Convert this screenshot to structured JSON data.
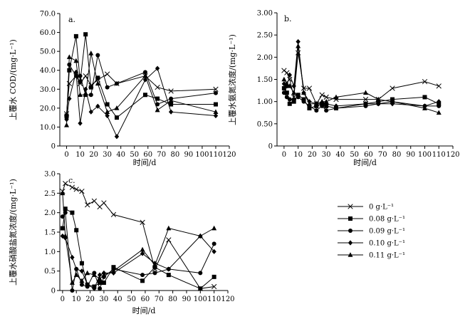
{
  "chart_data": [
    {
      "type": "line",
      "panel_label": "a.",
      "title": "",
      "xlabel": "时间/d",
      "ylabel": "上覆水 COD/(mg·L⁻¹)",
      "xlim": [
        -5,
        120
      ],
      "ylim": [
        0,
        70
      ],
      "xticks": [
        0,
        10,
        20,
        30,
        40,
        50,
        60,
        70,
        80,
        90,
        100,
        110,
        120
      ],
      "xtick_labels": [
        "0",
        "10",
        "20",
        "30",
        "40",
        "50",
        "60",
        "70",
        "80",
        "90",
        "100",
        "110",
        "120"
      ],
      "yticks": [
        0,
        10,
        20,
        30,
        40,
        50,
        60,
        70
      ],
      "ytick_labels": [
        "0",
        "10.0",
        "20.0",
        "30.0",
        "40.0",
        "50.0",
        "60.0",
        "70.0"
      ],
      "series": [
        {
          "name": "0 g·L⁻¹",
          "marker": "x",
          "x": [
            0,
            2,
            7,
            10,
            14,
            18,
            23,
            30,
            37,
            58,
            67,
            77,
            110
          ],
          "y": [
            17,
            33,
            37,
            33,
            37,
            32,
            35,
            38,
            33,
            37,
            31,
            29,
            30
          ]
        },
        {
          "name": "0.08 g·L⁻¹",
          "marker": "square",
          "x": [
            0,
            2,
            7,
            10,
            14,
            18,
            23,
            30,
            37,
            58,
            67,
            77,
            110
          ],
          "y": [
            16,
            40,
            58,
            34,
            59,
            31,
            36,
            22,
            15,
            27,
            25,
            22,
            22
          ]
        },
        {
          "name": "0.09 g·L⁻¹",
          "marker": "circle",
          "x": [
            0,
            2,
            7,
            10,
            14,
            18,
            23,
            30,
            37,
            58,
            67,
            77,
            110
          ],
          "y": [
            15,
            43,
            37,
            37,
            27,
            27,
            48,
            31,
            33,
            39,
            22,
            25,
            28
          ]
        },
        {
          "name": "0.10 g·L⁻¹",
          "marker": "diamond",
          "x": [
            0,
            2,
            7,
            10,
            14,
            18,
            23,
            30,
            37,
            58,
            67,
            77,
            110
          ],
          "y": [
            14,
            25,
            39,
            12,
            30,
            18,
            21,
            16,
            5,
            35,
            41,
            18,
            16
          ]
        },
        {
          "name": "0.11 g·L⁻¹",
          "marker": "triangle",
          "x": [
            0,
            2,
            7,
            10,
            14,
            18,
            23,
            30,
            37,
            58,
            67,
            77,
            110
          ],
          "y": [
            11,
            47,
            45,
            27,
            27,
            49,
            33,
            18,
            20,
            37,
            19,
            24,
            18
          ]
        }
      ]
    },
    {
      "type": "line",
      "panel_label": "b.",
      "title": "",
      "xlabel": "时间/d",
      "ylabel": "上覆水氨氮浓度/(mg·L⁻¹)",
      "xlim": [
        -5,
        120
      ],
      "ylim": [
        0,
        3
      ],
      "xticks": [
        0,
        10,
        20,
        30,
        40,
        50,
        60,
        70,
        80,
        90,
        100,
        110,
        120
      ],
      "xtick_labels": [
        "0",
        "10",
        "20",
        "30",
        "40",
        "50",
        "60",
        "70",
        "80",
        "90",
        "100",
        "110",
        "120"
      ],
      "yticks": [
        0,
        0.5,
        1,
        1.5,
        2,
        2.5,
        3
      ],
      "ytick_labels": [
        "0",
        "0.50",
        "1.00",
        "1.50",
        "2.00",
        "2.50",
        "3.00"
      ],
      "series": [
        {
          "name": "0 g·L⁻¹",
          "marker": "x",
          "x": [
            0,
            2,
            4,
            7,
            10,
            14,
            18,
            23,
            27,
            30,
            37,
            58,
            67,
            77,
            100,
            110
          ],
          "y": [
            1.7,
            1.65,
            1.5,
            1.1,
            2.1,
            1.3,
            1.3,
            0.95,
            1.15,
            1.1,
            1.05,
            1.05,
            1.05,
            1.3,
            1.45,
            1.35
          ]
        },
        {
          "name": "0.08 g·L⁻¹",
          "marker": "square",
          "x": [
            0,
            2,
            4,
            7,
            10,
            14,
            18,
            23,
            27,
            30,
            37,
            58,
            67,
            77,
            100,
            110
          ],
          "y": [
            1.3,
            1.2,
            0.95,
            1.0,
            1.15,
            1.05,
            0.85,
            0.9,
            0.95,
            0.9,
            0.85,
            0.95,
            1.0,
            1.05,
            1.1,
            0.95
          ]
        },
        {
          "name": "0.09 g·L⁻¹",
          "marker": "circle",
          "x": [
            0,
            2,
            4,
            7,
            10,
            14,
            18,
            23,
            27,
            30,
            37,
            58,
            67,
            77,
            100,
            110
          ],
          "y": [
            1.2,
            1.1,
            1.05,
            1.05,
            1.1,
            1.0,
            0.9,
            0.8,
            0.9,
            0.8,
            0.85,
            0.9,
            0.95,
            1.0,
            0.9,
            0.9
          ]
        },
        {
          "name": "0.10 g·L⁻¹",
          "marker": "diamond",
          "x": [
            0,
            2,
            4,
            7,
            10,
            14,
            18,
            23,
            27,
            30,
            37,
            58,
            67,
            77,
            100,
            110
          ],
          "y": [
            1.4,
            1.35,
            1.6,
            1.35,
            2.35,
            1.2,
            1.0,
            0.95,
            0.95,
            0.95,
            0.9,
            0.95,
            0.95,
            0.95,
            0.9,
            1.0
          ]
        },
        {
          "name": "0.11 g·L⁻¹",
          "marker": "triangle",
          "x": [
            0,
            2,
            4,
            7,
            10,
            14,
            18,
            23,
            27,
            30,
            37,
            58,
            67,
            77,
            100,
            110
          ],
          "y": [
            1.5,
            1.4,
            1.35,
            1.2,
            2.25,
            1.2,
            0.95,
            0.95,
            1.0,
            1.0,
            1.1,
            1.2,
            1.05,
            1.0,
            0.85,
            0.75
          ]
        }
      ]
    },
    {
      "type": "line",
      "panel_label": "c.",
      "title": "",
      "xlabel": "时间/d",
      "ylabel": "上覆水硝酸盐氮浓度/(mg·L⁻¹)",
      "xlim": [
        -2,
        120
      ],
      "ylim": [
        0,
        3
      ],
      "xticks": [
        0,
        10,
        20,
        30,
        40,
        50,
        60,
        70,
        80,
        90,
        100,
        110,
        120
      ],
      "xtick_labels": [
        "0",
        "10",
        "20",
        "30",
        "40",
        "50",
        "60",
        "70",
        "80",
        "90",
        "100",
        "110",
        "120"
      ],
      "yticks": [
        0,
        0.5,
        1,
        1.5,
        2,
        2.5,
        3
      ],
      "ytick_labels": [
        "0",
        "0.5",
        "1.0",
        "1.5",
        "2.0",
        "2.5",
        "3.0"
      ],
      "series": [
        {
          "name": "0 g·L⁻¹",
          "marker": "x",
          "x": [
            0,
            2,
            7,
            10,
            14,
            18,
            23,
            27,
            30,
            37,
            58,
            67,
            77,
            100,
            110
          ],
          "y": [
            2.55,
            2.75,
            2.65,
            2.6,
            2.55,
            2.2,
            2.3,
            2.15,
            2.25,
            1.95,
            1.75,
            0.55,
            1.3,
            0.05,
            0.1
          ]
        },
        {
          "name": "0.08 g·L⁻¹",
          "marker": "square",
          "x": [
            0,
            2,
            7,
            10,
            14,
            18,
            23,
            27,
            30,
            37,
            58,
            67,
            77,
            100,
            110
          ],
          "y": [
            1.6,
            2.1,
            2.0,
            1.55,
            0.7,
            0.15,
            0.1,
            0.2,
            0.2,
            0.6,
            0.25,
            0.6,
            0.4,
            0.05,
            0.35
          ]
        },
        {
          "name": "0.09 g·L⁻¹",
          "marker": "circle",
          "x": [
            0,
            2,
            7,
            10,
            14,
            18,
            23,
            27,
            30,
            37,
            58,
            67,
            77,
            100,
            110
          ],
          "y": [
            1.9,
            2.0,
            0.0,
            0.55,
            0.15,
            0.1,
            0.45,
            0.05,
            0.35,
            0.55,
            0.4,
            0.45,
            0.55,
            0.45,
            1.2
          ]
        },
        {
          "name": "0.10 g·L⁻¹",
          "marker": "diamond",
          "x": [
            0,
            2,
            7,
            10,
            14,
            18,
            23,
            27,
            30,
            37,
            58,
            67,
            77,
            100,
            110
          ],
          "y": [
            1.4,
            1.35,
            0.85,
            0.55,
            0.5,
            0.15,
            0.05,
            0.4,
            0.45,
            0.45,
            0.95,
            0.7,
            0.55,
            1.4,
            1.0
          ]
        },
        {
          "name": "0.11 g·L⁻¹",
          "marker": "triangle",
          "x": [
            0,
            2,
            7,
            10,
            14,
            18,
            23,
            27,
            30,
            37,
            58,
            67,
            77,
            100,
            110
          ],
          "y": [
            2.5,
            1.4,
            0.2,
            0.4,
            0.25,
            0.45,
            0.4,
            0.3,
            0.4,
            0.5,
            1.05,
            0.65,
            1.6,
            1.4,
            1.6
          ]
        }
      ]
    }
  ],
  "legend": {
    "placement": "right of panel c",
    "entries": [
      {
        "label": "0 g·L⁻¹",
        "marker": "x"
      },
      {
        "label": "0.08 g·L⁻¹",
        "marker": "square"
      },
      {
        "label": "0.09 g·L⁻¹",
        "marker": "circle"
      },
      {
        "label": "0.10 g·L⁻¹",
        "marker": "diamond"
      },
      {
        "label": "0.11 g·L⁻¹",
        "marker": "triangle"
      }
    ]
  },
  "colors": {
    "line": "#000000",
    "background": "#ffffff"
  }
}
